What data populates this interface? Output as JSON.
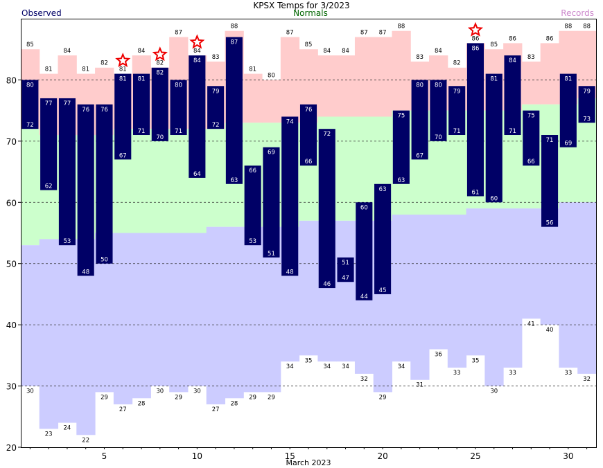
{
  "chart_data": {
    "type": "bar",
    "title": "KPSX Temps for 3/2023",
    "xlabel": "March 2023",
    "ylabel": "",
    "legend": {
      "observed": "Observed",
      "normals": "Normals",
      "records": "Records"
    },
    "colors": {
      "observed": "#000066",
      "normals_fill": "#ccffcc",
      "records_high": "#ffcccc",
      "records_low": "#ccccff",
      "normals_text": "#006600",
      "records_text": "#cc88cc",
      "star": "#ee0000"
    },
    "ylim": [
      20,
      90
    ],
    "yticks": [
      20,
      30,
      40,
      50,
      60,
      70,
      80
    ],
    "xticks": [
      5,
      10,
      15,
      20,
      25,
      30
    ],
    "grid": "dashed horizontal",
    "days": [
      1,
      2,
      3,
      4,
      5,
      6,
      7,
      8,
      9,
      10,
      11,
      12,
      13,
      14,
      15,
      16,
      17,
      18,
      19,
      20,
      21,
      22,
      23,
      24,
      25,
      26,
      27,
      28,
      29,
      30,
      31
    ],
    "observed_high": [
      80,
      77,
      77,
      76,
      76,
      81,
      81,
      82,
      80,
      84,
      79,
      87,
      66,
      69,
      74,
      76,
      72,
      51,
      60,
      63,
      75,
      80,
      80,
      79,
      86,
      81,
      84,
      75,
      71,
      81,
      79
    ],
    "observed_low": [
      72,
      62,
      53,
      48,
      50,
      67,
      71,
      70,
      71,
      64,
      72,
      63,
      53,
      51,
      48,
      66,
      46,
      47,
      44,
      45,
      63,
      67,
      70,
      71,
      61,
      60,
      71,
      66,
      56,
      69,
      73
    ],
    "normal_high": [
      72,
      71,
      71,
      71,
      71,
      72,
      72,
      72,
      72,
      72,
      72,
      73,
      73,
      73,
      73,
      73,
      74,
      74,
      74,
      74,
      75,
      75,
      75,
      75,
      75,
      75,
      75,
      76,
      76,
      76,
      77
    ],
    "normal_low": [
      53,
      54,
      54,
      54,
      55,
      55,
      55,
      55,
      55,
      55,
      56,
      56,
      56,
      56,
      56,
      57,
      57,
      57,
      57,
      57,
      58,
      58,
      58,
      58,
      59,
      59,
      59,
      59,
      59,
      60,
      60
    ],
    "record_high": [
      85,
      81,
      84,
      81,
      82,
      81,
      84,
      82,
      87,
      84,
      83,
      88,
      81,
      80,
      87,
      85,
      84,
      84,
      87,
      87,
      88,
      83,
      84,
      82,
      86,
      85,
      86,
      83,
      86,
      88,
      88
    ],
    "record_low": [
      30,
      23,
      24,
      22,
      29,
      27,
      28,
      30,
      29,
      30,
      27,
      28,
      29,
      29,
      34,
      35,
      34,
      34,
      32,
      29,
      34,
      31,
      36,
      33,
      35,
      30,
      33,
      41,
      40,
      33,
      32
    ],
    "record_high_set": [
      6,
      8,
      10,
      25
    ]
  }
}
